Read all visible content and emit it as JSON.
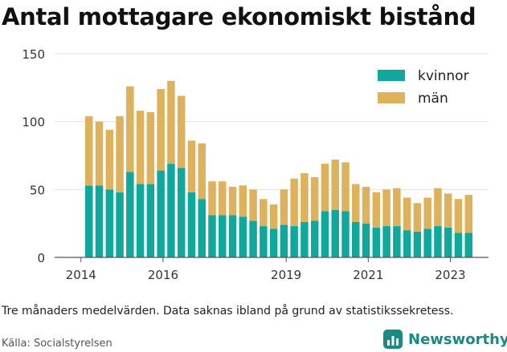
{
  "title": "Antal mottagare ekonomiskt bistånd",
  "note": "Tre månaders medelvärden. Data saknas ibland på grund av statistikssekretess.",
  "source": "Källa: Socialstyrelsen",
  "brand": {
    "name": "Newsworthy",
    "icon": "newsworthy-logo-icon",
    "color": "#1a8a82"
  },
  "colors": {
    "kvinnor": "#0fa89c",
    "man": "#deb15c",
    "grid": "#e3e3e3",
    "axis": "#555555"
  },
  "chart_data": {
    "type": "bar",
    "stacked": true,
    "ylim": [
      0,
      150
    ],
    "y_ticks": [
      0,
      50,
      100,
      150
    ],
    "x_tick_labels": [
      {
        "label": "2014",
        "pos": 0
      },
      {
        "label": "2016",
        "pos": 8
      },
      {
        "label": "2019",
        "pos": 20
      },
      {
        "label": "2021",
        "pos": 28
      },
      {
        "label": "2023",
        "pos": 36
      }
    ],
    "legend": {
      "placement": "top-right"
    },
    "grid": true,
    "series": [
      {
        "name": "kvinnor",
        "values": [
          53,
          53,
          50,
          48,
          63,
          54,
          54,
          64,
          69,
          66,
          48,
          43,
          31,
          31,
          31,
          30,
          27,
          23,
          21,
          24,
          23,
          26,
          27,
          34,
          35,
          34,
          26,
          25,
          22,
          23,
          23,
          20,
          19,
          21,
          23,
          22,
          18,
          18
        ]
      },
      {
        "name": "män",
        "values": [
          51,
          47,
          44,
          56,
          63,
          54,
          53,
          60,
          61,
          53,
          38,
          41,
          25,
          25,
          21,
          23,
          23,
          20,
          18,
          26,
          35,
          36,
          32,
          35,
          37,
          36,
          28,
          27,
          26,
          27,
          28,
          24,
          21,
          23,
          28,
          25,
          25,
          28
        ]
      }
    ]
  }
}
